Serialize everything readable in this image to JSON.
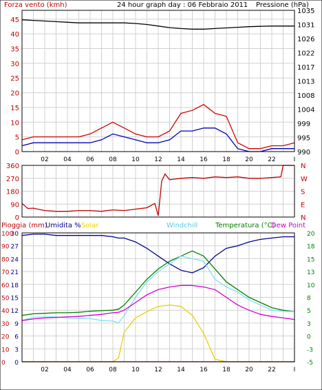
{
  "colors": {
    "frame": "#000000",
    "grid": "#d0d0d0",
    "wind_gust": "#d00000",
    "wind_avg": "#0000b0",
    "pressure": "#000000",
    "direction": "#c00000",
    "rain": "#d00000",
    "humidity": "#00008b",
    "solar": "#e8d000",
    "windchill": "#80e0f0",
    "temperature": "#008000",
    "dewpoint": "#d000d0"
  },
  "header": {
    "left": "Forza vento (kmh)",
    "center": "24 hour graph day : 06 Febbraio 2011",
    "right": "Pressione (hPa)"
  },
  "x_ticks": [
    "02",
    "04",
    "06",
    "08",
    "10",
    "12",
    "14",
    "16",
    "18",
    "20",
    "22",
    "I"
  ],
  "chart_data": [
    {
      "type": "line",
      "title": "",
      "x": [
        0,
        1,
        2,
        3,
        4,
        5,
        6,
        7,
        8,
        9,
        10,
        11,
        12,
        13,
        14,
        15,
        16,
        17,
        18,
        19,
        20,
        21,
        22,
        23,
        24
      ],
      "y_left_label": "Forza vento (kmh)",
      "y_left_ticks": [
        "0",
        "5",
        "10",
        "15",
        "20",
        "25",
        "30",
        "35",
        "40",
        "45"
      ],
      "y_left_range": [
        0,
        48
      ],
      "y_right_label": "Pressione (hPa)",
      "y_right_ticks": [
        "990",
        "995",
        "999",
        "1004",
        "1008",
        "1013",
        "1017",
        "1022",
        "1026",
        "1031",
        "1035"
      ],
      "y_right_range": [
        990,
        1035
      ],
      "series": [
        {
          "role": "gust",
          "axis": "left",
          "values": [
            4,
            5,
            5,
            5,
            5,
            5,
            6,
            8,
            10,
            8,
            6,
            5,
            5,
            7,
            13,
            14,
            16,
            13,
            12,
            3,
            1,
            1,
            2,
            2,
            3
          ]
        },
        {
          "role": "average",
          "axis": "left",
          "values": [
            2,
            3,
            3,
            3,
            3,
            3,
            3,
            4,
            6,
            5,
            4,
            3,
            3,
            4,
            7,
            7,
            8,
            8,
            6,
            1,
            0,
            0,
            1,
            1,
            1
          ]
        },
        {
          "role": "pressure",
          "axis": "right",
          "values": [
            1032,
            1031.8,
            1031.6,
            1031.4,
            1031.2,
            1031,
            1031,
            1031,
            1031,
            1031,
            1030.8,
            1030.5,
            1030,
            1029.5,
            1029.2,
            1029,
            1029,
            1029.2,
            1029.4,
            1029.6,
            1029.8,
            1029.9,
            1030,
            1030,
            1030
          ]
        }
      ]
    },
    {
      "type": "line",
      "title": "",
      "x": [
        0,
        0.5,
        1,
        2,
        3,
        4,
        5,
        6,
        7,
        8,
        9,
        10,
        11,
        11.7,
        12,
        12.3,
        12.6,
        13,
        14,
        15,
        16,
        17,
        18,
        19,
        20,
        21,
        22,
        22.8,
        23,
        24
      ],
      "y_left_ticks": [
        "0",
        "90",
        "180",
        "270",
        "360"
      ],
      "y_left_range": [
        0,
        360
      ],
      "y_right_ticks": [
        "N",
        "W",
        "S",
        "E",
        "N"
      ],
      "series": [
        {
          "role": "direction",
          "values": [
            95,
            60,
            62,
            45,
            40,
            40,
            45,
            45,
            40,
            50,
            45,
            55,
            65,
            95,
            10,
            250,
            300,
            260,
            270,
            275,
            270,
            280,
            275,
            280,
            270,
            270,
            275,
            280,
            360,
            360
          ]
        }
      ]
    },
    {
      "type": "line",
      "title": "",
      "x": [
        0,
        1,
        2,
        3,
        4,
        5,
        6,
        7,
        8,
        8.5,
        9,
        10,
        11,
        12,
        13,
        14,
        15,
        16,
        17,
        18,
        19,
        20,
        21,
        22,
        23,
        24
      ],
      "labels": {
        "rain": "Pioggia (mm)",
        "humidity": "Umidita %",
        "solar": "Solar",
        "windchill": "Windchill",
        "temperature": "Temperatura (°C)",
        "dewpoint": "Dew Point"
      },
      "y_left_ticks": [
        "0",
        "10",
        "20",
        "30",
        "40",
        "50",
        "60",
        "70",
        "80",
        "90",
        "100"
      ],
      "y_left_ticks_alt": [
        "0",
        "3",
        "6",
        "9",
        "12",
        "15",
        "18",
        "21",
        "24",
        "27",
        "30"
      ],
      "y_left_range": [
        0,
        100
      ],
      "y_right_ticks": [
        "-5",
        "-3",
        "0",
        "3",
        "5",
        "8",
        "10",
        "13",
        "15",
        "18",
        "20"
      ],
      "y_right_range": [
        -5,
        20
      ],
      "series": [
        {
          "role": "humidity",
          "axis": "left",
          "values": [
            98,
            99,
            99,
            98,
            98,
            98,
            98,
            98,
            97,
            96,
            96,
            93,
            88,
            82,
            76,
            71,
            69,
            73,
            82,
            88,
            90,
            93,
            95,
            96,
            97,
            97
          ]
        },
        {
          "role": "solar",
          "axis": "left",
          "values": [
            0,
            0,
            0,
            0,
            0,
            0,
            0,
            0,
            0,
            3,
            23,
            34,
            39,
            43,
            44,
            43,
            36,
            22,
            2,
            0,
            0,
            0,
            0,
            0,
            0,
            0
          ]
        },
        {
          "role": "rain",
          "axis": "left",
          "values": [
            0,
            0,
            0,
            0,
            0,
            0,
            0,
            0,
            0,
            0,
            0,
            0,
            0,
            0,
            0,
            0,
            0,
            0,
            0,
            0,
            0,
            0,
            0,
            0,
            0,
            0
          ]
        },
        {
          "role": "temperature",
          "axis": "right",
          "values": [
            4.0,
            4.3,
            4.4,
            4.5,
            4.5,
            4.6,
            4.8,
            4.9,
            5.0,
            5.2,
            6.0,
            8.5,
            11.0,
            13.0,
            14.5,
            15.5,
            16.5,
            15.5,
            13.0,
            10.5,
            9.0,
            7.5,
            6.5,
            5.5,
            5.0,
            4.7
          ]
        },
        {
          "role": "windchill",
          "axis": "right",
          "values": [
            3.0,
            3.6,
            3.7,
            3.7,
            3.5,
            3.4,
            3.4,
            3.0,
            2.9,
            2.5,
            4.0,
            7.5,
            10.5,
            12.5,
            14.0,
            15.5,
            15.0,
            14.5,
            11.0,
            9.5,
            8.5,
            7.0,
            6.0,
            5.0,
            4.8,
            4.7
          ]
        },
        {
          "role": "dewpoint",
          "axis": "right",
          "values": [
            3.0,
            3.3,
            3.5,
            3.6,
            3.7,
            3.8,
            4.0,
            4.2,
            4.5,
            4.6,
            5.0,
            6.5,
            8.0,
            9.0,
            9.5,
            9.8,
            9.8,
            9.5,
            9.0,
            7.5,
            6.0,
            5.0,
            4.2,
            3.8,
            3.5,
            3.2
          ]
        }
      ]
    }
  ]
}
